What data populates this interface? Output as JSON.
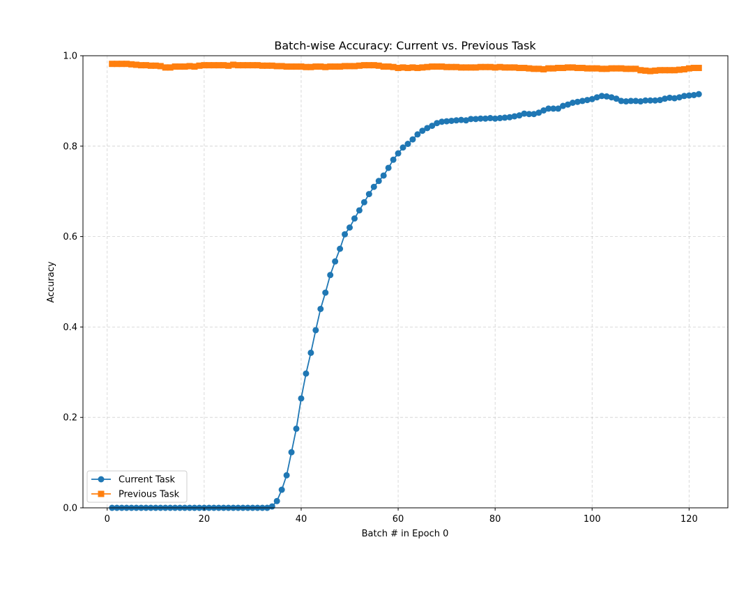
{
  "chart_data": {
    "type": "line",
    "title": "Batch-wise Accuracy: Current vs. Previous Task",
    "xlabel": "Batch # in Epoch 0",
    "ylabel": "Accuracy",
    "xlim": [
      -5,
      128
    ],
    "ylim": [
      0,
      1.0
    ],
    "xticks": [
      0,
      20,
      40,
      60,
      80,
      100,
      120
    ],
    "yticks": [
      0.0,
      0.2,
      0.4,
      0.6,
      0.8,
      1.0
    ],
    "xtick_labels": [
      "0",
      "20",
      "40",
      "60",
      "80",
      "100",
      "120"
    ],
    "ytick_labels": [
      "0.0",
      "0.2",
      "0.4",
      "0.6",
      "0.8",
      "1.0"
    ],
    "grid": true,
    "legend_position": "lower-left",
    "x": [
      1,
      2,
      3,
      4,
      5,
      6,
      7,
      8,
      9,
      10,
      11,
      12,
      13,
      14,
      15,
      16,
      17,
      18,
      19,
      20,
      21,
      22,
      23,
      24,
      25,
      26,
      27,
      28,
      29,
      30,
      31,
      32,
      33,
      34,
      35,
      36,
      37,
      38,
      39,
      40,
      41,
      42,
      43,
      44,
      45,
      46,
      47,
      48,
      49,
      50,
      51,
      52,
      53,
      54,
      55,
      56,
      57,
      58,
      59,
      60,
      61,
      62,
      63,
      64,
      65,
      66,
      67,
      68,
      69,
      70,
      71,
      72,
      73,
      74,
      75,
      76,
      77,
      78,
      79,
      80,
      81,
      82,
      83,
      84,
      85,
      86,
      87,
      88,
      89,
      90,
      91,
      92,
      93,
      94,
      95,
      96,
      97,
      98,
      99,
      100,
      101,
      102,
      103,
      104,
      105,
      106,
      107,
      108,
      109,
      110,
      111,
      112,
      113,
      114,
      115,
      116,
      117,
      118,
      119,
      120,
      121,
      122
    ],
    "series": [
      {
        "name": "Current Task",
        "color": "#1f77b4",
        "marker": "circle",
        "values": [
          0,
          0,
          0,
          0,
          0,
          0,
          0,
          0,
          0,
          0,
          0,
          0,
          0,
          0,
          0,
          0,
          0,
          0,
          0,
          0,
          0,
          0,
          0,
          0,
          0,
          0,
          0,
          0,
          0,
          0,
          0,
          0,
          0,
          0.003,
          0.015,
          0.04,
          0.072,
          0.123,
          0.175,
          0.242,
          0.297,
          0.343,
          0.393,
          0.44,
          0.476,
          0.515,
          0.545,
          0.573,
          0.605,
          0.62,
          0.64,
          0.658,
          0.676,
          0.694,
          0.71,
          0.723,
          0.735,
          0.752,
          0.77,
          0.784,
          0.797,
          0.805,
          0.815,
          0.826,
          0.834,
          0.84,
          0.845,
          0.851,
          0.854,
          0.855,
          0.856,
          0.857,
          0.858,
          0.857,
          0.86,
          0.86,
          0.861,
          0.861,
          0.862,
          0.861,
          0.862,
          0.863,
          0.864,
          0.866,
          0.868,
          0.872,
          0.871,
          0.871,
          0.874,
          0.879,
          0.883,
          0.883,
          0.883,
          0.889,
          0.892,
          0.896,
          0.898,
          0.9,
          0.902,
          0.904,
          0.908,
          0.911,
          0.91,
          0.908,
          0.905,
          0.9,
          0.899,
          0.9,
          0.9,
          0.899,
          0.901,
          0.901,
          0.901,
          0.902,
          0.905,
          0.907,
          0.906,
          0.908,
          0.911,
          0.912,
          0.913,
          0.915
        ]
      },
      {
        "name": "Previous Task",
        "color": "#ff7f0e",
        "marker": "square",
        "values": [
          0.982,
          0.982,
          0.982,
          0.982,
          0.981,
          0.98,
          0.979,
          0.979,
          0.978,
          0.978,
          0.977,
          0.974,
          0.974,
          0.976,
          0.976,
          0.976,
          0.977,
          0.976,
          0.978,
          0.979,
          0.979,
          0.979,
          0.979,
          0.979,
          0.978,
          0.98,
          0.979,
          0.979,
          0.979,
          0.979,
          0.979,
          0.978,
          0.978,
          0.978,
          0.977,
          0.977,
          0.976,
          0.976,
          0.976,
          0.976,
          0.975,
          0.975,
          0.976,
          0.976,
          0.975,
          0.976,
          0.976,
          0.976,
          0.977,
          0.977,
          0.977,
          0.978,
          0.979,
          0.979,
          0.979,
          0.978,
          0.976,
          0.976,
          0.975,
          0.973,
          0.974,
          0.973,
          0.974,
          0.973,
          0.974,
          0.975,
          0.976,
          0.976,
          0.976,
          0.975,
          0.975,
          0.975,
          0.974,
          0.974,
          0.974,
          0.974,
          0.975,
          0.975,
          0.975,
          0.974,
          0.975,
          0.974,
          0.974,
          0.974,
          0.973,
          0.973,
          0.972,
          0.971,
          0.971,
          0.97,
          0.972,
          0.972,
          0.973,
          0.973,
          0.974,
          0.974,
          0.973,
          0.973,
          0.972,
          0.972,
          0.972,
          0.971,
          0.971,
          0.972,
          0.972,
          0.972,
          0.971,
          0.971,
          0.971,
          0.968,
          0.967,
          0.966,
          0.967,
          0.968,
          0.968,
          0.968,
          0.968,
          0.969,
          0.97,
          0.972,
          0.973,
          0.973
        ]
      }
    ]
  }
}
